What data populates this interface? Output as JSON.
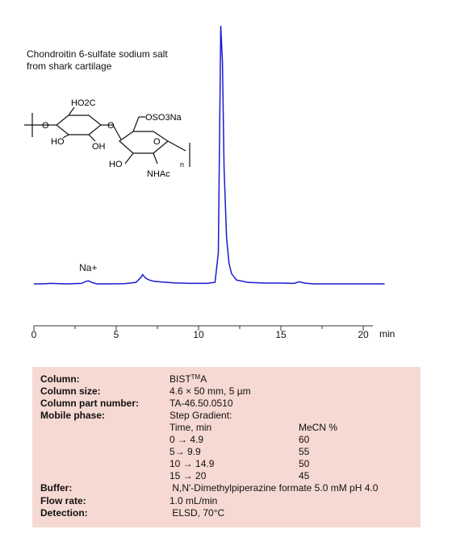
{
  "title_lines": [
    "Chondroitin 6-sulfate sodium salt",
    "from shark cartilage"
  ],
  "structure_labels": {
    "carboxyl": "HO2C",
    "ring1_oh_left": "HO",
    "ring1_oh_bottom": "OH",
    "bridge_o": "O",
    "ring2_o": "O",
    "sulfate": "OSO3Na",
    "ho": "HO",
    "nhac": "NHAc",
    "ring_o": "O",
    "o_left": "O",
    "n": "n"
  },
  "chart_data": {
    "type": "line",
    "x_unit_label": "min",
    "xlim": [
      0,
      21.5
    ],
    "x_ticks": [
      0,
      5,
      10,
      15,
      20
    ],
    "x_tick_labels": [
      "0",
      "5",
      "10",
      "15",
      "20"
    ],
    "line_color": "#1a1ad0",
    "annotations": [
      {
        "text": "Na+",
        "x": 3.3
      }
    ],
    "series": [
      {
        "x": [
          0,
          0.5,
          1,
          2,
          2.9,
          3.1,
          3.3,
          3.5,
          3.8,
          4.5,
          5.5,
          6.2,
          6.5,
          6.6,
          6.8,
          7.0,
          7.3,
          7.8,
          8.5,
          9.5,
          10.5,
          11.0,
          11.2,
          11.35,
          11.45,
          11.55,
          11.7,
          11.85,
          12.0,
          12.3,
          13,
          14,
          15,
          15.8,
          16.1,
          16.3,
          16.6,
          17,
          18,
          19,
          20,
          21,
          21.3
        ],
        "y": [
          0,
          0,
          0.2,
          0,
          0.2,
          0.8,
          1.2,
          0.6,
          0,
          0,
          0.1,
          0.6,
          2.5,
          3.6,
          2.2,
          1.5,
          1.0,
          0.7,
          0.4,
          0.2,
          0.2,
          0.6,
          12,
          100,
          86,
          45,
          18,
          8,
          4,
          1.5,
          0.6,
          0.3,
          0.3,
          0.2,
          0.8,
          0.5,
          0.2,
          0,
          0,
          0,
          0,
          0,
          0
        ]
      }
    ]
  },
  "conditions": {
    "column": {
      "label": "Column:",
      "value_main": "BIST",
      "value_sup": "TM",
      "value_end": "A"
    },
    "column_size": {
      "label": "Column size:",
      "value": "4.6 × 50 mm, 5 µm"
    },
    "part_number": {
      "label": "Column part number:",
      "value": "TA-46.50.0510"
    },
    "mobile_phase": {
      "label": "Mobile phase:",
      "value": "Step Gradient:"
    },
    "gradient_headers": [
      "Time, min",
      "MeCN %"
    ],
    "gradient_rows": [
      [
        "0  → 4.9",
        "60"
      ],
      [
        "5→ 9.9",
        "55"
      ],
      [
        "10 → 14.9",
        "50"
      ],
      [
        "15 → 20",
        "45"
      ]
    ],
    "buffer": {
      "label": "Buffer:",
      "value": " N,N'-Dimethylpiperazine formate 5.0 mM pH 4.0"
    },
    "flow_rate": {
      "label": "Flow rate:",
      "value": "1.0 mL/min"
    },
    "detection": {
      "label": "Detection:",
      "value": " ELSD, 70°C"
    }
  }
}
